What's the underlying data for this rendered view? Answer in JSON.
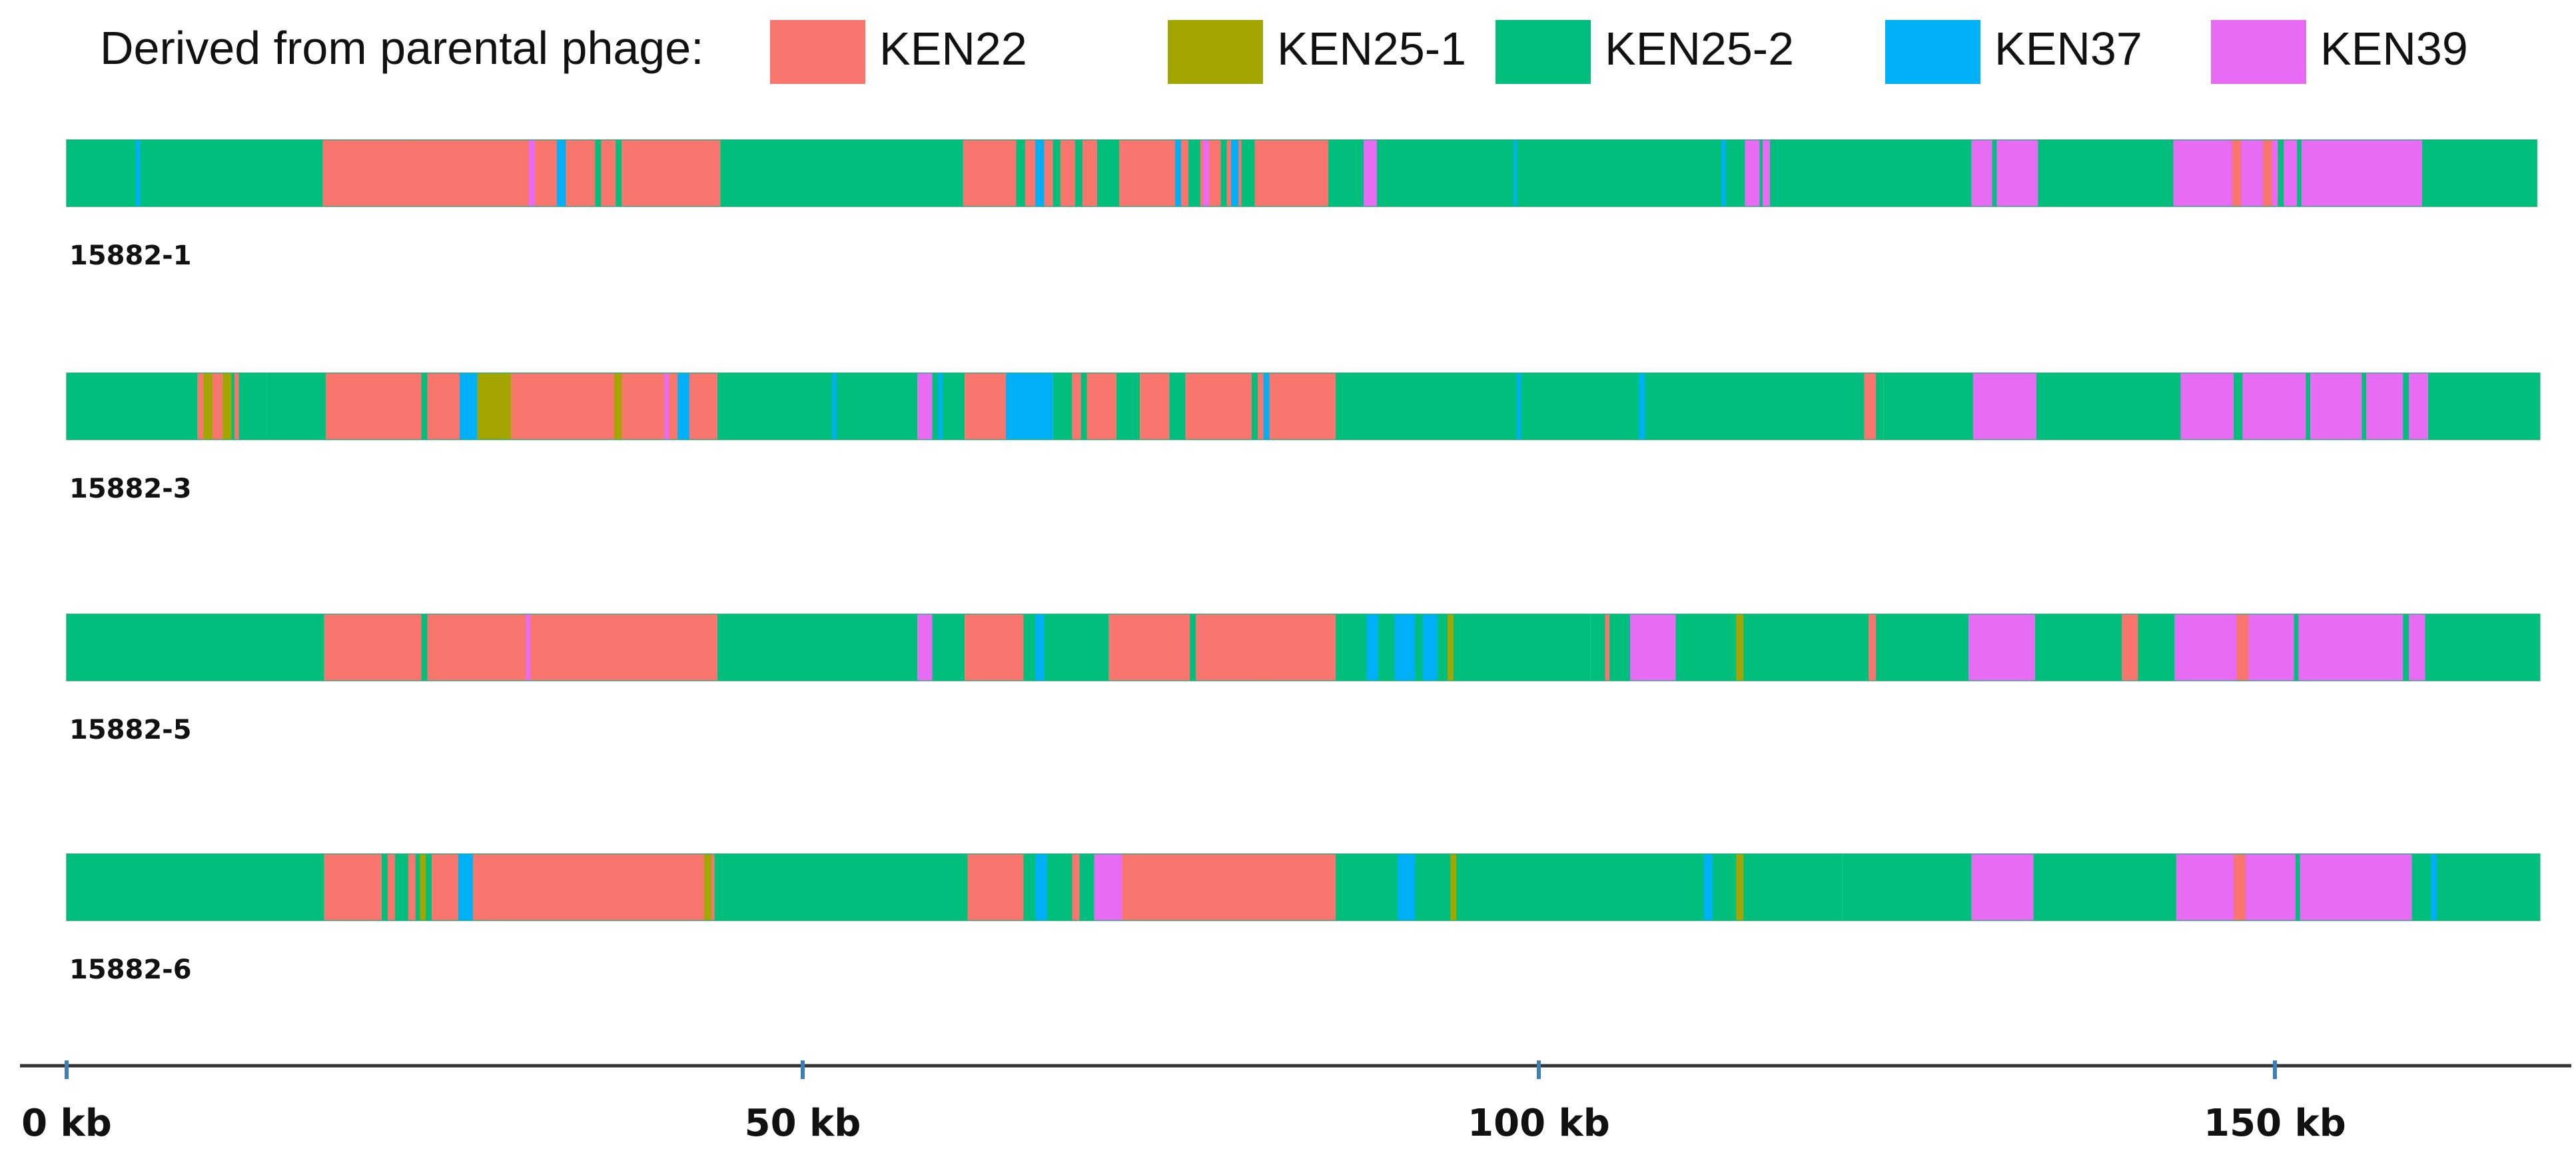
{
  "chart_data": {
    "type": "genome_mosaic",
    "legend_title": "Derived from parental phage:",
    "colors": {
      "KEN22": "#F8766D",
      "KEN25-1": "#A3A500",
      "KEN25-2": "#00BF7D",
      "KEN37": "#00B0F6",
      "KEN39": "#E76BF3"
    },
    "legend": [
      {
        "label": "KEN22",
        "key": "KEN22"
      },
      {
        "label": "KEN25-1",
        "key": "KEN25-1"
      },
      {
        "label": "KEN25-2",
        "key": "KEN25-2"
      },
      {
        "label": "KEN37",
        "key": "KEN37"
      },
      {
        "label": "KEN39",
        "key": "KEN39"
      }
    ],
    "x_axis": {
      "min": 0,
      "max": 170,
      "ticks": [
        0,
        50,
        100,
        150
      ],
      "tick_labels": [
        "0 kb",
        "50 kb",
        "100 kb",
        "150 kb"
      ]
    },
    "tracks": [
      {
        "name": "15882-1",
        "genome_end": 167.8,
        "segments": [
          {
            "start": 0,
            "end": 17.4,
            "source": "KEN25-2"
          },
          {
            "start": 17.4,
            "end": 44.4,
            "source": "KEN22"
          },
          {
            "start": 44.4,
            "end": 60.9,
            "source": "KEN25-2"
          },
          {
            "start": 60.9,
            "end": 85.7,
            "source": "KEN22"
          },
          {
            "start": 85.7,
            "end": 129.4,
            "source": "KEN25-2"
          },
          {
            "start": 129.4,
            "end": 133.9,
            "source": "KEN39"
          },
          {
            "start": 133.9,
            "end": 143.1,
            "source": "KEN25-2"
          },
          {
            "start": 143.1,
            "end": 160.0,
            "source": "KEN39"
          },
          {
            "start": 160.0,
            "end": 167.8,
            "source": "KEN25-2"
          }
        ],
        "insertions": [
          {
            "pos": 4.7,
            "width": 0.3,
            "source": "KEN37"
          },
          {
            "pos": 13.1,
            "width": 0.2,
            "source": "KEN25-2"
          },
          {
            "pos": 23.4,
            "width": 0.2,
            "source": "KEN22"
          },
          {
            "pos": 31.4,
            "width": 0.4,
            "source": "KEN39"
          },
          {
            "pos": 33.3,
            "width": 0.6,
            "source": "KEN37"
          },
          {
            "pos": 35.9,
            "width": 0.4,
            "source": "KEN25-2"
          },
          {
            "pos": 37.3,
            "width": 0.4,
            "source": "KEN25-2"
          },
          {
            "pos": 58.0,
            "width": 0.2,
            "source": "KEN25-2"
          },
          {
            "pos": 64.5,
            "width": 0.6,
            "source": "KEN25-2"
          },
          {
            "pos": 65.8,
            "width": 0.6,
            "source": "KEN37"
          },
          {
            "pos": 67.0,
            "width": 0.5,
            "source": "KEN25-2"
          },
          {
            "pos": 68.5,
            "width": 0.5,
            "source": "KEN25-2"
          },
          {
            "pos": 70.0,
            "width": 1.5,
            "source": "KEN25-2"
          },
          {
            "pos": 75.3,
            "width": 0.4,
            "source": "KEN37"
          },
          {
            "pos": 76.2,
            "width": 0.8,
            "source": "KEN25-2"
          },
          {
            "pos": 77.2,
            "width": 0.4,
            "source": "KEN39"
          },
          {
            "pos": 78.4,
            "width": 0.4,
            "source": "KEN25-2"
          },
          {
            "pos": 79.1,
            "width": 0.5,
            "source": "KEN37"
          },
          {
            "pos": 79.8,
            "width": 0.9,
            "source": "KEN25-2"
          },
          {
            "pos": 88.1,
            "width": 0.9,
            "source": "KEN39"
          },
          {
            "pos": 98.3,
            "width": 0.2,
            "source": "KEN37"
          },
          {
            "pos": 112.4,
            "width": 0.3,
            "source": "KEN37"
          },
          {
            "pos": 114.0,
            "width": 1.0,
            "source": "KEN39"
          },
          {
            "pos": 115.2,
            "width": 0.5,
            "source": "KEN39"
          },
          {
            "pos": 120.2,
            "width": 0.4,
            "source": "KEN25-2"
          },
          {
            "pos": 122.0,
            "width": 0.4,
            "source": "KEN25-2"
          },
          {
            "pos": 122.8,
            "width": 0.3,
            "source": "KEN25-2"
          },
          {
            "pos": 124.5,
            "width": 0.4,
            "source": "KEN25-2"
          },
          {
            "pos": 130.8,
            "width": 0.3,
            "source": "KEN25-2"
          },
          {
            "pos": 147.1,
            "width": 0.6,
            "source": "KEN22"
          },
          {
            "pos": 149.2,
            "width": 0.6,
            "source": "KEN22"
          },
          {
            "pos": 150.2,
            "width": 0.4,
            "source": "KEN25-2"
          },
          {
            "pos": 151.5,
            "width": 0.3,
            "source": "KEN25-2"
          }
        ]
      },
      {
        "name": "15882-3",
        "genome_end": 168.0,
        "segments": [
          {
            "start": 0,
            "end": 8.9,
            "source": "KEN25-2"
          },
          {
            "start": 8.9,
            "end": 10.6,
            "source": "KEN22"
          },
          {
            "start": 10.6,
            "end": 13.6,
            "source": "KEN25-2"
          },
          {
            "start": 13.6,
            "end": 17.6,
            "source": "KEN25-2"
          },
          {
            "start": 17.6,
            "end": 27.9,
            "source": "KEN22"
          },
          {
            "start": 27.9,
            "end": 30.2,
            "source": "KEN25-1"
          },
          {
            "start": 30.2,
            "end": 44.2,
            "source": "KEN22"
          },
          {
            "start": 44.2,
            "end": 57.8,
            "source": "KEN25-2"
          },
          {
            "start": 57.8,
            "end": 58.8,
            "source": "KEN39"
          },
          {
            "start": 58.8,
            "end": 61.0,
            "source": "KEN25-2"
          },
          {
            "start": 61.0,
            "end": 63.8,
            "source": "KEN22"
          },
          {
            "start": 63.8,
            "end": 67.0,
            "source": "KEN37"
          },
          {
            "start": 67.0,
            "end": 68.3,
            "source": "KEN25-2"
          },
          {
            "start": 68.3,
            "end": 71.3,
            "source": "KEN22"
          },
          {
            "start": 71.3,
            "end": 72.9,
            "source": "KEN25-2"
          },
          {
            "start": 72.9,
            "end": 74.9,
            "source": "KEN22"
          },
          {
            "start": 74.9,
            "end": 76.0,
            "source": "KEN25-2"
          },
          {
            "start": 76.0,
            "end": 86.2,
            "source": "KEN22"
          },
          {
            "start": 86.2,
            "end": 123.4,
            "source": "KEN25-2"
          },
          {
            "start": 123.4,
            "end": 129.5,
            "source": "KEN25-2"
          },
          {
            "start": 129.5,
            "end": 133.8,
            "source": "KEN39"
          },
          {
            "start": 133.8,
            "end": 143.6,
            "source": "KEN25-2"
          },
          {
            "start": 143.6,
            "end": 160.4,
            "source": "KEN39"
          },
          {
            "start": 160.4,
            "end": 168.0,
            "source": "KEN25-2"
          }
        ],
        "insertions": [
          {
            "pos": 9.3,
            "width": 0.6,
            "source": "KEN25-1"
          },
          {
            "pos": 10.6,
            "width": 0.6,
            "source": "KEN25-1"
          },
          {
            "pos": 11.4,
            "width": 0.3,
            "source": "KEN22"
          },
          {
            "pos": 24.1,
            "width": 0.4,
            "source": "KEN25-2"
          },
          {
            "pos": 26.7,
            "width": 1.2,
            "source": "KEN37"
          },
          {
            "pos": 37.2,
            "width": 0.5,
            "source": "KEN25-1"
          },
          {
            "pos": 40.6,
            "width": 0.3,
            "source": "KEN39"
          },
          {
            "pos": 41.5,
            "width": 0.8,
            "source": "KEN37"
          },
          {
            "pos": 52.0,
            "width": 0.3,
            "source": "KEN37"
          },
          {
            "pos": 59.2,
            "width": 0.3,
            "source": "KEN37"
          },
          {
            "pos": 68.9,
            "width": 0.4,
            "source": "KEN25-2"
          },
          {
            "pos": 80.5,
            "width": 0.4,
            "source": "KEN25-2"
          },
          {
            "pos": 81.3,
            "width": 0.4,
            "source": "KEN37"
          },
          {
            "pos": 98.5,
            "width": 0.3,
            "source": "KEN37"
          },
          {
            "pos": 106.8,
            "width": 0.4,
            "source": "KEN37"
          },
          {
            "pos": 113.7,
            "width": 0.3,
            "source": "KEN25-2"
          },
          {
            "pos": 122.1,
            "width": 0.8,
            "source": "KEN22"
          },
          {
            "pos": 147.2,
            "width": 0.6,
            "source": "KEN25-2"
          },
          {
            "pos": 152.1,
            "width": 0.3,
            "source": "KEN25-2"
          },
          {
            "pos": 155.9,
            "width": 0.3,
            "source": "KEN25-2"
          },
          {
            "pos": 158.7,
            "width": 0.4,
            "source": "KEN25-2"
          }
        ]
      },
      {
        "name": "15882-5",
        "genome_end": 168.0,
        "segments": [
          {
            "start": 0,
            "end": 17.5,
            "source": "KEN25-2"
          },
          {
            "start": 17.5,
            "end": 44.2,
            "source": "KEN22"
          },
          {
            "start": 44.2,
            "end": 57.8,
            "source": "KEN25-2"
          },
          {
            "start": 57.8,
            "end": 58.8,
            "source": "KEN39"
          },
          {
            "start": 58.8,
            "end": 61.0,
            "source": "KEN25-2"
          },
          {
            "start": 61.0,
            "end": 65.0,
            "source": "KEN22"
          },
          {
            "start": 65.0,
            "end": 70.8,
            "source": "KEN25-2"
          },
          {
            "start": 70.8,
            "end": 86.2,
            "source": "KEN22"
          },
          {
            "start": 86.2,
            "end": 95.0,
            "source": "KEN25-2"
          },
          {
            "start": 95.0,
            "end": 103.5,
            "source": "KEN25-2"
          },
          {
            "start": 103.5,
            "end": 106.2,
            "source": "KEN25-2"
          },
          {
            "start": 106.2,
            "end": 109.3,
            "source": "KEN39"
          },
          {
            "start": 109.3,
            "end": 129.2,
            "source": "KEN25-2"
          },
          {
            "start": 129.2,
            "end": 133.7,
            "source": "KEN39"
          },
          {
            "start": 133.7,
            "end": 143.2,
            "source": "KEN25-2"
          },
          {
            "start": 143.2,
            "end": 160.2,
            "source": "KEN39"
          },
          {
            "start": 160.2,
            "end": 168.0,
            "source": "KEN25-2"
          }
        ],
        "insertions": [
          {
            "pos": 24.1,
            "width": 0.4,
            "source": "KEN25-2"
          },
          {
            "pos": 31.2,
            "width": 0.3,
            "source": "KEN39"
          },
          {
            "pos": 65.8,
            "width": 0.6,
            "source": "KEN37"
          },
          {
            "pos": 66.8,
            "width": 0.4,
            "source": "KEN25-2"
          },
          {
            "pos": 76.3,
            "width": 0.4,
            "source": "KEN25-2"
          },
          {
            "pos": 81.5,
            "width": 0.4,
            "source": "KEN22"
          },
          {
            "pos": 88.3,
            "width": 0.8,
            "source": "KEN37"
          },
          {
            "pos": 89.4,
            "width": 0.3,
            "source": "KEN25-2"
          },
          {
            "pos": 90.2,
            "width": 1.4,
            "source": "KEN37"
          },
          {
            "pos": 92.1,
            "width": 1.0,
            "source": "KEN37"
          },
          {
            "pos": 93.8,
            "width": 0.4,
            "source": "KEN25-1"
          },
          {
            "pos": 104.5,
            "width": 0.3,
            "source": "KEN22"
          },
          {
            "pos": 113.4,
            "width": 0.5,
            "source": "KEN25-1"
          },
          {
            "pos": 122.4,
            "width": 0.5,
            "source": "KEN22"
          },
          {
            "pos": 138.4,
            "width": 0.3,
            "source": "KEN25-2"
          },
          {
            "pos": 139.6,
            "width": 1.1,
            "source": "KEN22"
          },
          {
            "pos": 147.4,
            "width": 0.8,
            "source": "KEN22"
          },
          {
            "pos": 151.3,
            "width": 0.3,
            "source": "KEN25-2"
          },
          {
            "pos": 158.7,
            "width": 0.4,
            "source": "KEN25-2"
          }
        ]
      },
      {
        "name": "15882-6",
        "genome_end": 168.0,
        "segments": [
          {
            "start": 0,
            "end": 17.5,
            "source": "KEN25-2"
          },
          {
            "start": 17.5,
            "end": 21.4,
            "source": "KEN22"
          },
          {
            "start": 21.4,
            "end": 24.8,
            "source": "KEN25-2"
          },
          {
            "start": 24.8,
            "end": 44.0,
            "source": "KEN22"
          },
          {
            "start": 44.0,
            "end": 61.2,
            "source": "KEN25-2"
          },
          {
            "start": 61.2,
            "end": 65.0,
            "source": "KEN22"
          },
          {
            "start": 65.0,
            "end": 69.8,
            "source": "KEN25-2"
          },
          {
            "start": 69.8,
            "end": 71.7,
            "source": "KEN39"
          },
          {
            "start": 71.7,
            "end": 86.2,
            "source": "KEN22"
          },
          {
            "start": 86.2,
            "end": 120.6,
            "source": "KEN25-2"
          },
          {
            "start": 120.6,
            "end": 129.4,
            "source": "KEN25-2"
          },
          {
            "start": 129.4,
            "end": 133.6,
            "source": "KEN39"
          },
          {
            "start": 133.6,
            "end": 143.3,
            "source": "KEN25-2"
          },
          {
            "start": 143.3,
            "end": 159.3,
            "source": "KEN39"
          },
          {
            "start": 159.3,
            "end": 168.0,
            "source": "KEN25-2"
          }
        ],
        "insertions": [
          {
            "pos": 8.0,
            "width": 0.3,
            "source": "KEN25-2"
          },
          {
            "pos": 21.8,
            "width": 0.5,
            "source": "KEN22"
          },
          {
            "pos": 23.2,
            "width": 0.5,
            "source": "KEN22"
          },
          {
            "pos": 24.0,
            "width": 0.4,
            "source": "KEN25-1"
          },
          {
            "pos": 26.6,
            "width": 1.0,
            "source": "KEN37"
          },
          {
            "pos": 43.3,
            "width": 0.5,
            "source": "KEN25-1"
          },
          {
            "pos": 65.8,
            "width": 0.8,
            "source": "KEN37"
          },
          {
            "pos": 67.3,
            "width": 0.4,
            "source": "KEN25-2"
          },
          {
            "pos": 68.3,
            "width": 0.5,
            "source": "KEN22"
          },
          {
            "pos": 90.4,
            "width": 1.2,
            "source": "KEN37"
          },
          {
            "pos": 94.0,
            "width": 0.4,
            "source": "KEN25-1"
          },
          {
            "pos": 111.2,
            "width": 0.6,
            "source": "KEN37"
          },
          {
            "pos": 113.4,
            "width": 0.5,
            "source": "KEN25-1"
          },
          {
            "pos": 147.2,
            "width": 0.8,
            "source": "KEN22"
          },
          {
            "pos": 151.4,
            "width": 0.3,
            "source": "KEN25-2"
          },
          {
            "pos": 160.6,
            "width": 0.4,
            "source": "KEN37"
          }
        ]
      }
    ]
  }
}
